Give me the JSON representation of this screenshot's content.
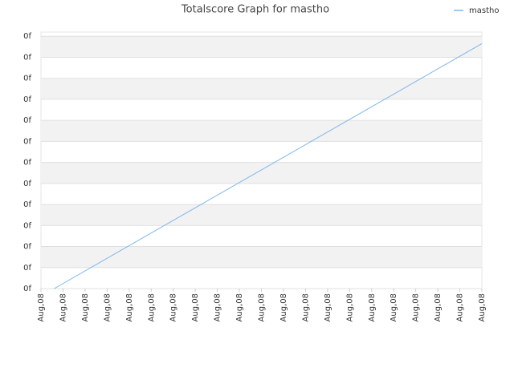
{
  "chart_data": {
    "type": "line",
    "title": "Totalscore Graph for mastho",
    "x": [
      0.6,
      20
    ],
    "series": [
      {
        "name": "mastho",
        "color": "#7cb5ec",
        "values": [
          0,
          11.65
        ]
      }
    ],
    "xlim": [
      0,
      20
    ],
    "xticks": [
      {
        "value": 0,
        "label": "Aug,08"
      },
      {
        "value": 1,
        "label": "Aug,08"
      },
      {
        "value": 2,
        "label": "Aug,08"
      },
      {
        "value": 3,
        "label": "Aug,08"
      },
      {
        "value": 4,
        "label": "Aug,08"
      },
      {
        "value": 5,
        "label": "Aug,08"
      },
      {
        "value": 6,
        "label": "Aug,08"
      },
      {
        "value": 7,
        "label": "Aug,08"
      },
      {
        "value": 8,
        "label": "Aug,08"
      },
      {
        "value": 9,
        "label": "Aug,08"
      },
      {
        "value": 10,
        "label": "Aug,08"
      },
      {
        "value": 11,
        "label": "Aug,08"
      },
      {
        "value": 12,
        "label": "Aug,08"
      },
      {
        "value": 13,
        "label": "Aug,08"
      },
      {
        "value": 14,
        "label": "Aug,08"
      },
      {
        "value": 15,
        "label": "Aug,08"
      },
      {
        "value": 16,
        "label": "Aug,08"
      },
      {
        "value": 17,
        "label": "Aug,08"
      },
      {
        "value": 18,
        "label": "Aug,08"
      },
      {
        "value": 19,
        "label": "Aug,08"
      },
      {
        "value": 20,
        "label": "Aug,08"
      }
    ],
    "ylim": [
      0,
      12.2
    ],
    "yticks": [
      {
        "value": 0,
        "label": "0f"
      },
      {
        "value": 1,
        "label": "0f"
      },
      {
        "value": 2,
        "label": "0f"
      },
      {
        "value": 3,
        "label": "0f"
      },
      {
        "value": 4,
        "label": "0f"
      },
      {
        "value": 5,
        "label": "0f"
      },
      {
        "value": 6,
        "label": "0f"
      },
      {
        "value": 7,
        "label": "0f"
      },
      {
        "value": 8,
        "label": "0f"
      },
      {
        "value": 9,
        "label": "0f"
      },
      {
        "value": 10,
        "label": "0f"
      },
      {
        "value": 11,
        "label": "0f"
      },
      {
        "value": 12,
        "label": "0f"
      }
    ],
    "grid": true,
    "legend": "top-right"
  }
}
